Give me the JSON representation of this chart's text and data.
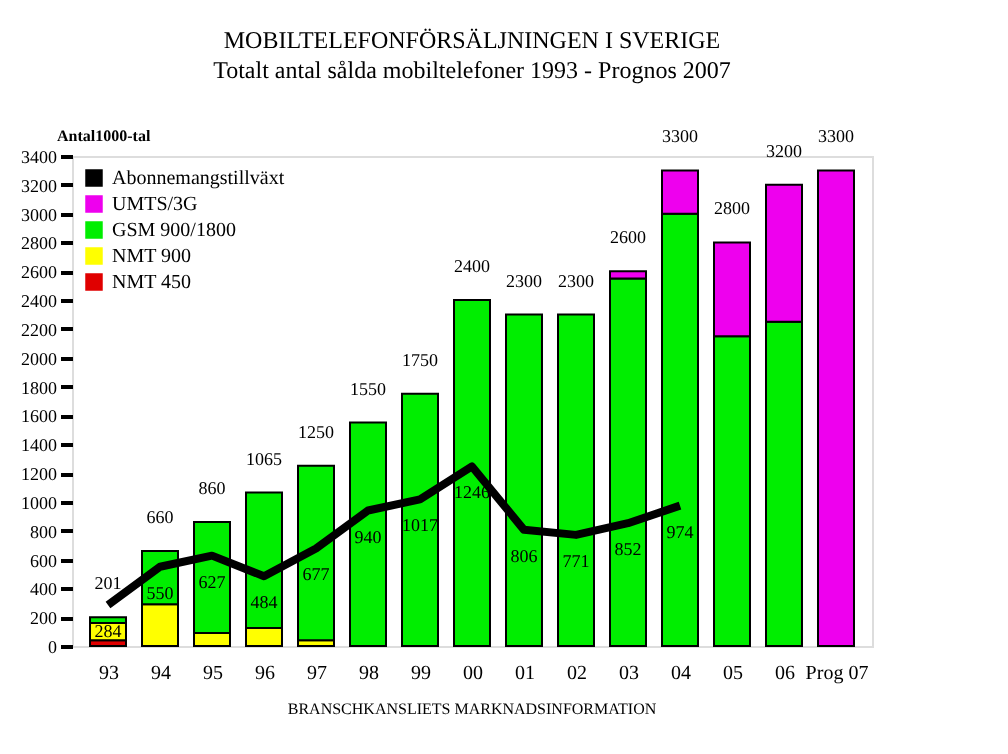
{
  "chart_data": {
    "type": "bar",
    "title": "MOBILTELEFONFÖRSÄLJNINGEN I SVERIGE",
    "subtitle": "Totalt antal sålda mobiltelefoner 1993 - Prognos 2007",
    "ylabel": "Antal1000-tal",
    "categories": [
      "93",
      "94",
      "95",
      "96",
      "97",
      "98",
      "99",
      "00",
      "01",
      "02",
      "03",
      "04",
      "05",
      "06",
      "Prog 07"
    ],
    "stacked": true,
    "series": [
      {
        "name": "NMT 450",
        "color": "#e00000",
        "values": [
          40,
          null,
          0,
          0,
          0,
          0,
          0,
          0,
          0,
          0,
          0,
          0,
          0,
          0,
          0
        ]
      },
      {
        "name": "NMT 900",
        "color": "#ffff00",
        "values": [
          120,
          290,
          90,
          125,
          40,
          0,
          0,
          0,
          0,
          0,
          0,
          0,
          0,
          0,
          0
        ]
      },
      {
        "name": "GSM 900/1800",
        "color": "#00ee00",
        "values": [
          40,
          370,
          770,
          940,
          1210,
          1550,
          1750,
          2400,
          2300,
          2300,
          2550,
          3000,
          2150,
          2250,
          0
        ]
      },
      {
        "name": "UMTS/3G",
        "color": "#ee00ee",
        "values": [
          0,
          0,
          0,
          0,
          0,
          0,
          0,
          0,
          0,
          0,
          50,
          300,
          650,
          950,
          3300
        ]
      },
      {
        "name": "Abonnemangstillväxt",
        "type": "line",
        "color": "#000000",
        "values": [
          284,
          550,
          627,
          484,
          677,
          940,
          1017,
          1246,
          806,
          771,
          852,
          974,
          null,
          null,
          null
        ],
        "value_labels": [
          "284",
          "550",
          "627",
          "484",
          "677",
          "940",
          "1017",
          "1246",
          "806",
          "771",
          "852",
          "974",
          null,
          null,
          null
        ]
      }
    ],
    "totals": [
      "201",
      "660",
      "860",
      "1065",
      "1250",
      "1550",
      "1750",
      "2400",
      "2300",
      "2300",
      "2600",
      "3300",
      "2800",
      "3200",
      "3300"
    ],
    "ylim": [
      0,
      3400
    ],
    "yticks": [
      0,
      200,
      400,
      600,
      800,
      1000,
      1200,
      1400,
      1600,
      1800,
      2000,
      2200,
      2400,
      2600,
      2800,
      3000,
      3200,
      3400
    ],
    "grid": false,
    "legend": "top left",
    "annotations": [
      "BRANSCHKANSLIETS MARKNADSINFORMATION"
    ]
  }
}
